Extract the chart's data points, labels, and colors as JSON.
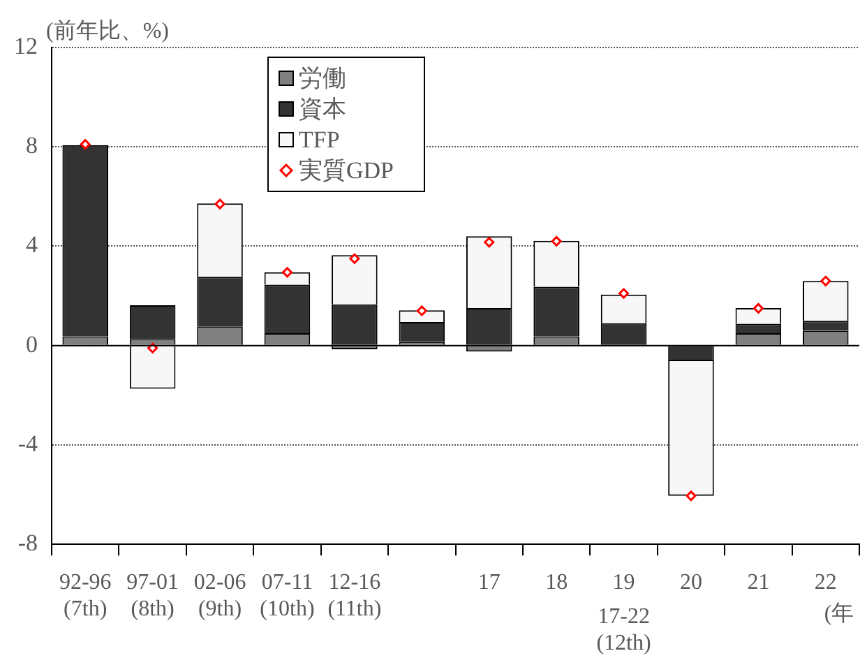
{
  "chart_data": {
    "type": "bar",
    "stacked": true,
    "ylabel": "(前年比、%)",
    "categories": [
      "92-96 (7th)",
      "97-01 (8th)",
      "02-06 (9th)",
      "07-11 (10th)",
      "12-16 (11th)",
      null,
      "17",
      "18",
      "19",
      "20",
      "21",
      "22"
    ],
    "series": [
      {
        "name": "労働",
        "color": "#808080",
        "values": [
          0.37,
          0.26,
          0.77,
          0.5,
          -0.15,
          0.15,
          -0.24,
          0.37,
          null,
          0,
          0.5,
          0.6
        ]
      },
      {
        "name": "資本",
        "color": "#333333",
        "values": [
          7.7,
          1.36,
          2.0,
          1.95,
          1.66,
          0.8,
          1.51,
          2.0,
          0.9,
          -0.63,
          0.38,
          0.4
        ]
      },
      {
        "name": "TFP",
        "color": "#f7f7f7",
        "values": [
          0,
          -1.74,
          2.95,
          0.5,
          1.98,
          0.47,
          2.89,
          1.85,
          1.15,
          -5.42,
          0.63,
          1.6
        ]
      },
      {
        "name": "実質GDP",
        "type": "scatter",
        "color": "#ff0000",
        "values": [
          8.1,
          -0.1,
          5.7,
          2.95,
          3.5,
          1.4,
          4.16,
          4.2,
          2.1,
          -6.05,
          1.5,
          2.6
        ]
      }
    ],
    "ylim": [
      -8,
      12
    ],
    "yticks": [
      -8,
      -4,
      0,
      4,
      8,
      12
    ],
    "grid": "y",
    "legend": "top",
    "ref_lines": [
      {
        "axis": "y",
        "value": 0,
        "color": "#000000"
      }
    ],
    "marker": "diamond",
    "annotations": [
      "17-22 (12th)",
      "(年"
    ]
  }
}
